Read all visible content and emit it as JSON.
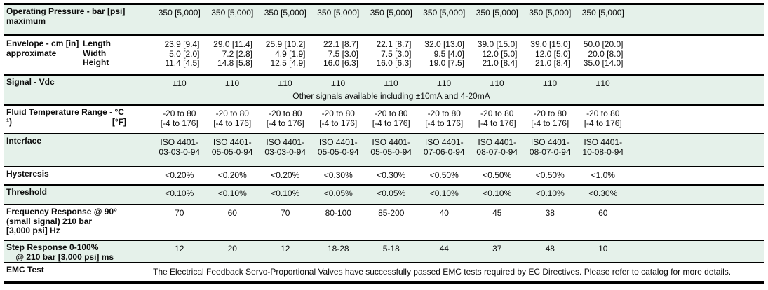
{
  "table": {
    "colors": {
      "row_shade": "#e5f1ea",
      "border": "#000000",
      "text": "#0c0c0c"
    },
    "columns_count": 9,
    "rows": [
      {
        "key": "operating-pressure",
        "shaded": true,
        "label_lines": [
          "Operating Pressure - bar [psi]",
          "maximum"
        ],
        "values": [
          "350 [5,000]",
          "350 [5,000]",
          "350 [5,000]",
          "350 [5,000]",
          "350 [5,000]",
          "350 [5,000]",
          "350 [5,000]",
          "350 [5,000]",
          "350 [5,000]"
        ]
      },
      {
        "key": "envelope",
        "shaded": false,
        "label_lines": [
          "Envelope - cm [in]",
          "approximate"
        ],
        "sub_label_lines": [
          "Length",
          "Width",
          "Height"
        ],
        "values": [
          [
            "23.9 [9.4]",
            "5.0 [2.0]",
            "11.4 [4.5]"
          ],
          [
            "29.0 [11.4]",
            "7.2 [2.8]",
            "14.8 [5.8]"
          ],
          [
            "25.9 [10.2]",
            "4.9 [1.9]",
            "12.5 [4.9]"
          ],
          [
            "22.1 [8.7]",
            "7.5 [3.0]",
            "16.0 [6.3]"
          ],
          [
            "22.1 [8.7]",
            "7.5 [3.0]",
            "16.0 [6.3]"
          ],
          [
            "32.0 [13.0]",
            "9.5 [4.0]",
            "19.0 [7.5]"
          ],
          [
            "39.0 [15.0]",
            "12.0 [5.0]",
            "21.0 [8.4]"
          ],
          [
            "39.0 [15.0]",
            "12.0 [5.0]",
            "21.0 [8.4]"
          ],
          [
            "50.0 [20.0]",
            "20.0 [8.0]",
            "35.0 [14.0]"
          ]
        ]
      },
      {
        "key": "signal",
        "shaded": true,
        "label_lines": [
          "Signal - Vdc"
        ],
        "values": [
          "±10",
          "±10",
          "±10",
          "±10",
          "±10",
          "±10",
          "±10",
          "±10",
          "±10"
        ],
        "note": "Other signals available including ±10mA and 4-20mA"
      },
      {
        "key": "fluid-temperature",
        "shaded": false,
        "label_lines": [
          "Fluid Temperature Range - °C",
          {
            "left": "¹)",
            "right": "[°F]"
          }
        ],
        "values": [
          [
            "-20 to 80",
            "[-4 to 176]"
          ],
          [
            "-20 to 80",
            "[-4 to 176]"
          ],
          [
            "-20 to 80",
            "[-4 to 176]"
          ],
          [
            "-20 to 80",
            "[-4 to 176]"
          ],
          [
            "-20 to 80",
            "[-4 to 176]"
          ],
          [
            "-20 to 80",
            "[-4 to 176]"
          ],
          [
            "-20 to 80",
            "[-4 to 176]"
          ],
          [
            "-20 to 80",
            "[-4 to 176]"
          ],
          [
            "-20 to 80",
            "[-4 to 176]"
          ]
        ]
      },
      {
        "key": "interface",
        "shaded": true,
        "label_lines": [
          "Interface"
        ],
        "values": [
          [
            "ISO 4401-",
            "03-03-0-94"
          ],
          [
            "ISO 4401-",
            "05-05-0-94"
          ],
          [
            "ISO 4401-",
            "03-03-0-94"
          ],
          [
            "ISO 4401-",
            "05-05-0-94"
          ],
          [
            "ISO 4401-",
            "05-05-0-94"
          ],
          [
            "ISO 4401-",
            "07-06-0-94"
          ],
          [
            "ISO 4401-",
            "08-07-0-94"
          ],
          [
            "ISO 4401-",
            "08-07-0-94"
          ],
          [
            "ISO 4401-",
            "10-08-0-94"
          ]
        ]
      },
      {
        "key": "hysteresis",
        "shaded": false,
        "label_lines": [
          "Hysteresis"
        ],
        "values": [
          "<0.20%",
          "<0.20%",
          "<0.20%",
          "<0.30%",
          "<0.30%",
          "<0.50%",
          "<0.50%",
          "<0.50%",
          "<1.0%"
        ]
      },
      {
        "key": "threshold",
        "shaded": true,
        "label_lines": [
          "Threshold"
        ],
        "values": [
          "<0.10%",
          "<0.10%",
          "<0.10%",
          "<0.05%",
          "<0.05%",
          "<0.10%",
          "<0.10%",
          "<0.10%",
          "<0.30%"
        ]
      },
      {
        "key": "frequency-response",
        "shaded": false,
        "label_lines": [
          "Frequency Response @ 90°",
          "(small signal) 210 bar",
          "[3,000 psi] Hz"
        ],
        "values": [
          "70",
          "60",
          "70",
          "80-100",
          "85-200",
          "40",
          "45",
          "38",
          "60"
        ]
      },
      {
        "key": "step-response",
        "shaded": true,
        "label_lines": [
          "Step Response 0-100%",
          "    @ 210 bar [3,000 psi] ms"
        ],
        "values": [
          "12",
          "20",
          "12",
          "18-28",
          "5-18",
          "44",
          "37",
          "48",
          "10"
        ]
      },
      {
        "key": "emc-test",
        "shaded": false,
        "label_lines": [
          "EMC Test"
        ],
        "full_text": "The Electrical Feedback Servo-Proportional Valves have successfully passed EMC tests required by EC Directives. Please refer to catalog for more details."
      }
    ]
  }
}
